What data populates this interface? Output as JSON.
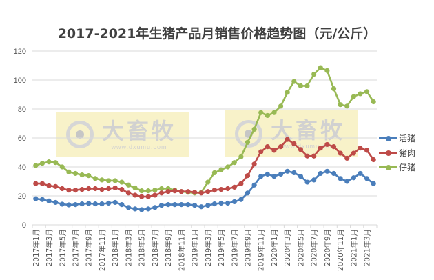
{
  "chart_data": {
    "type": "line",
    "title": "2017-2021年生猪产品月销售价格趋势图（元/公斤）",
    "xlabel": "",
    "ylabel": "",
    "ylim": [
      0,
      120
    ],
    "yticks": [
      0,
      20,
      40,
      60,
      80,
      100,
      120
    ],
    "grid": true,
    "legend_position": "right",
    "x_tick_labels": [
      "2017年1月",
      "2017年3月",
      "2017年5月",
      "2017年7月",
      "2017年9月",
      "2017年11月",
      "2018年1月",
      "2018年3月",
      "2018年5月",
      "2018年7月",
      "2018年9月",
      "2018年11月",
      "2019年1月",
      "2019年3月",
      "2019年5月",
      "2019年7月",
      "2019年9月",
      "2019年11月",
      "2020年1月",
      "2020年3月",
      "2020年5月",
      "2020年7月",
      "2020年9月",
      "2020年11月",
      "2021年1月",
      "2021年3月"
    ],
    "x": [
      "2017-01",
      "2017-02",
      "2017-03",
      "2017-04",
      "2017-05",
      "2017-06",
      "2017-07",
      "2017-08",
      "2017-09",
      "2017-10",
      "2017-11",
      "2017-12",
      "2018-01",
      "2018-02",
      "2018-03",
      "2018-04",
      "2018-05",
      "2018-06",
      "2018-07",
      "2018-08",
      "2018-09",
      "2018-10",
      "2018-11",
      "2018-12",
      "2019-01",
      "2019-02",
      "2019-03",
      "2019-04",
      "2019-05",
      "2019-06",
      "2019-07",
      "2019-08",
      "2019-09",
      "2019-10",
      "2019-11",
      "2019-12",
      "2020-01",
      "2020-02",
      "2020-03",
      "2020-04",
      "2020-05",
      "2020-06",
      "2020-07",
      "2020-08",
      "2020-09",
      "2020-10",
      "2020-11",
      "2020-12",
      "2021-01",
      "2021-02",
      "2021-03",
      "2021-04"
    ],
    "series": [
      {
        "name": "活猪",
        "color": "#4a7ebb",
        "values": [
          18,
          17.5,
          16.5,
          15.5,
          14.3,
          13.8,
          14,
          14.5,
          14.8,
          14.5,
          14.5,
          15,
          15.5,
          14,
          12,
          11,
          10.5,
          11,
          12,
          13.5,
          14,
          14,
          14,
          14,
          13.5,
          12.5,
          13.5,
          14.5,
          15,
          15,
          16,
          17.5,
          22,
          27.5,
          33.5,
          35,
          33.5,
          35,
          37,
          36,
          33.5,
          29.5,
          31,
          35.5,
          37,
          35.5,
          32,
          30,
          32.5,
          35.5,
          32,
          28.5
        ]
      },
      {
        "name": "猪肉",
        "color": "#be4b48",
        "values": [
          28.5,
          28.5,
          27,
          26.5,
          25,
          24,
          24,
          24.5,
          25,
          25,
          24.5,
          25,
          25.5,
          24.5,
          22,
          20.5,
          19.5,
          19.5,
          20.5,
          22,
          23,
          23.5,
          23,
          23,
          22.5,
          22,
          23,
          24,
          24.5,
          25,
          26,
          28.5,
          34,
          42,
          50.5,
          54,
          51.5,
          54,
          59,
          56,
          52,
          47.5,
          47.5,
          53,
          55.5,
          54,
          49.5,
          46,
          49.5,
          53,
          51.5,
          45
        ]
      },
      {
        "name": "仔猪",
        "color": "#98b954",
        "values": [
          41,
          42.5,
          43.5,
          43,
          40,
          36.5,
          35.5,
          34.5,
          34,
          32,
          31,
          30.5,
          30.5,
          29.5,
          27.5,
          25.5,
          23.5,
          23.5,
          24,
          25,
          25,
          24,
          23,
          22.5,
          22,
          22.5,
          29.5,
          36,
          38,
          40,
          43,
          47,
          57,
          66,
          77.5,
          75.5,
          77.5,
          82,
          91.5,
          99,
          96,
          96,
          104,
          108.5,
          106.5,
          94,
          83,
          82,
          88.5,
          90.5,
          92,
          85
        ]
      }
    ]
  },
  "legend": {
    "items": [
      {
        "label": "活猪",
        "color": "#4a7ebb"
      },
      {
        "label": "猪肉",
        "color": "#be4b48"
      },
      {
        "label": "仔猪",
        "color": "#98b954"
      }
    ]
  },
  "watermark": {
    "brand": "大畜牧",
    "url": "www.dxumu.com"
  }
}
